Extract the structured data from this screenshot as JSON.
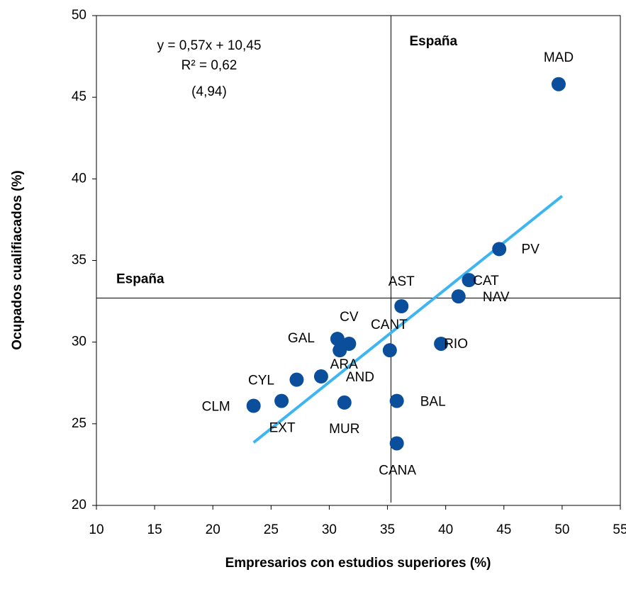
{
  "chart_data": {
    "type": "scatter",
    "xlabel": "Empresarios con estudios superiores (%)",
    "ylabel": "Ocupados cualifiacados (%)",
    "annotations": [
      "y = 0,57x + 10,45",
      "R² = 0,62",
      "(4,94)"
    ],
    "series": [
      {
        "color": "#0b4f9c",
        "labels": [
          "MAD",
          "PV",
          "CAT",
          "NAV",
          "RIO",
          "AST",
          "CANT",
          "BAL",
          "CANA",
          "CV",
          "GAL",
          "ARA",
          "AND",
          "CYL",
          "EXT",
          "CLM",
          "MUR"
        ],
        "x": [
          49.7,
          44.6,
          42.0,
          41.1,
          39.6,
          36.2,
          35.2,
          35.8,
          35.8,
          31.7,
          30.7,
          30.9,
          29.3,
          27.2,
          25.9,
          23.5,
          31.3
        ],
        "values": [
          45.8,
          35.7,
          33.8,
          32.8,
          29.9,
          32.2,
          29.5,
          26.4,
          23.8,
          29.9,
          30.2,
          29.5,
          27.9,
          27.7,
          26.4,
          26.1,
          26.3
        ]
      }
    ],
    "trendline": {
      "color": "#3db5f0",
      "x": [
        23.5,
        50
      ],
      "values": [
        23.85,
        38.95
      ]
    },
    "reference_lines": {
      "label": "España",
      "x": 35.3,
      "y": 32.7
    },
    "xlim": [
      10,
      55
    ],
    "xticks": [
      10,
      15,
      20,
      25,
      30,
      35,
      40,
      45,
      50,
      55
    ],
    "ylim": [
      20,
      50
    ],
    "yticks": [
      20,
      25,
      30,
      35,
      40,
      45,
      50
    ]
  }
}
